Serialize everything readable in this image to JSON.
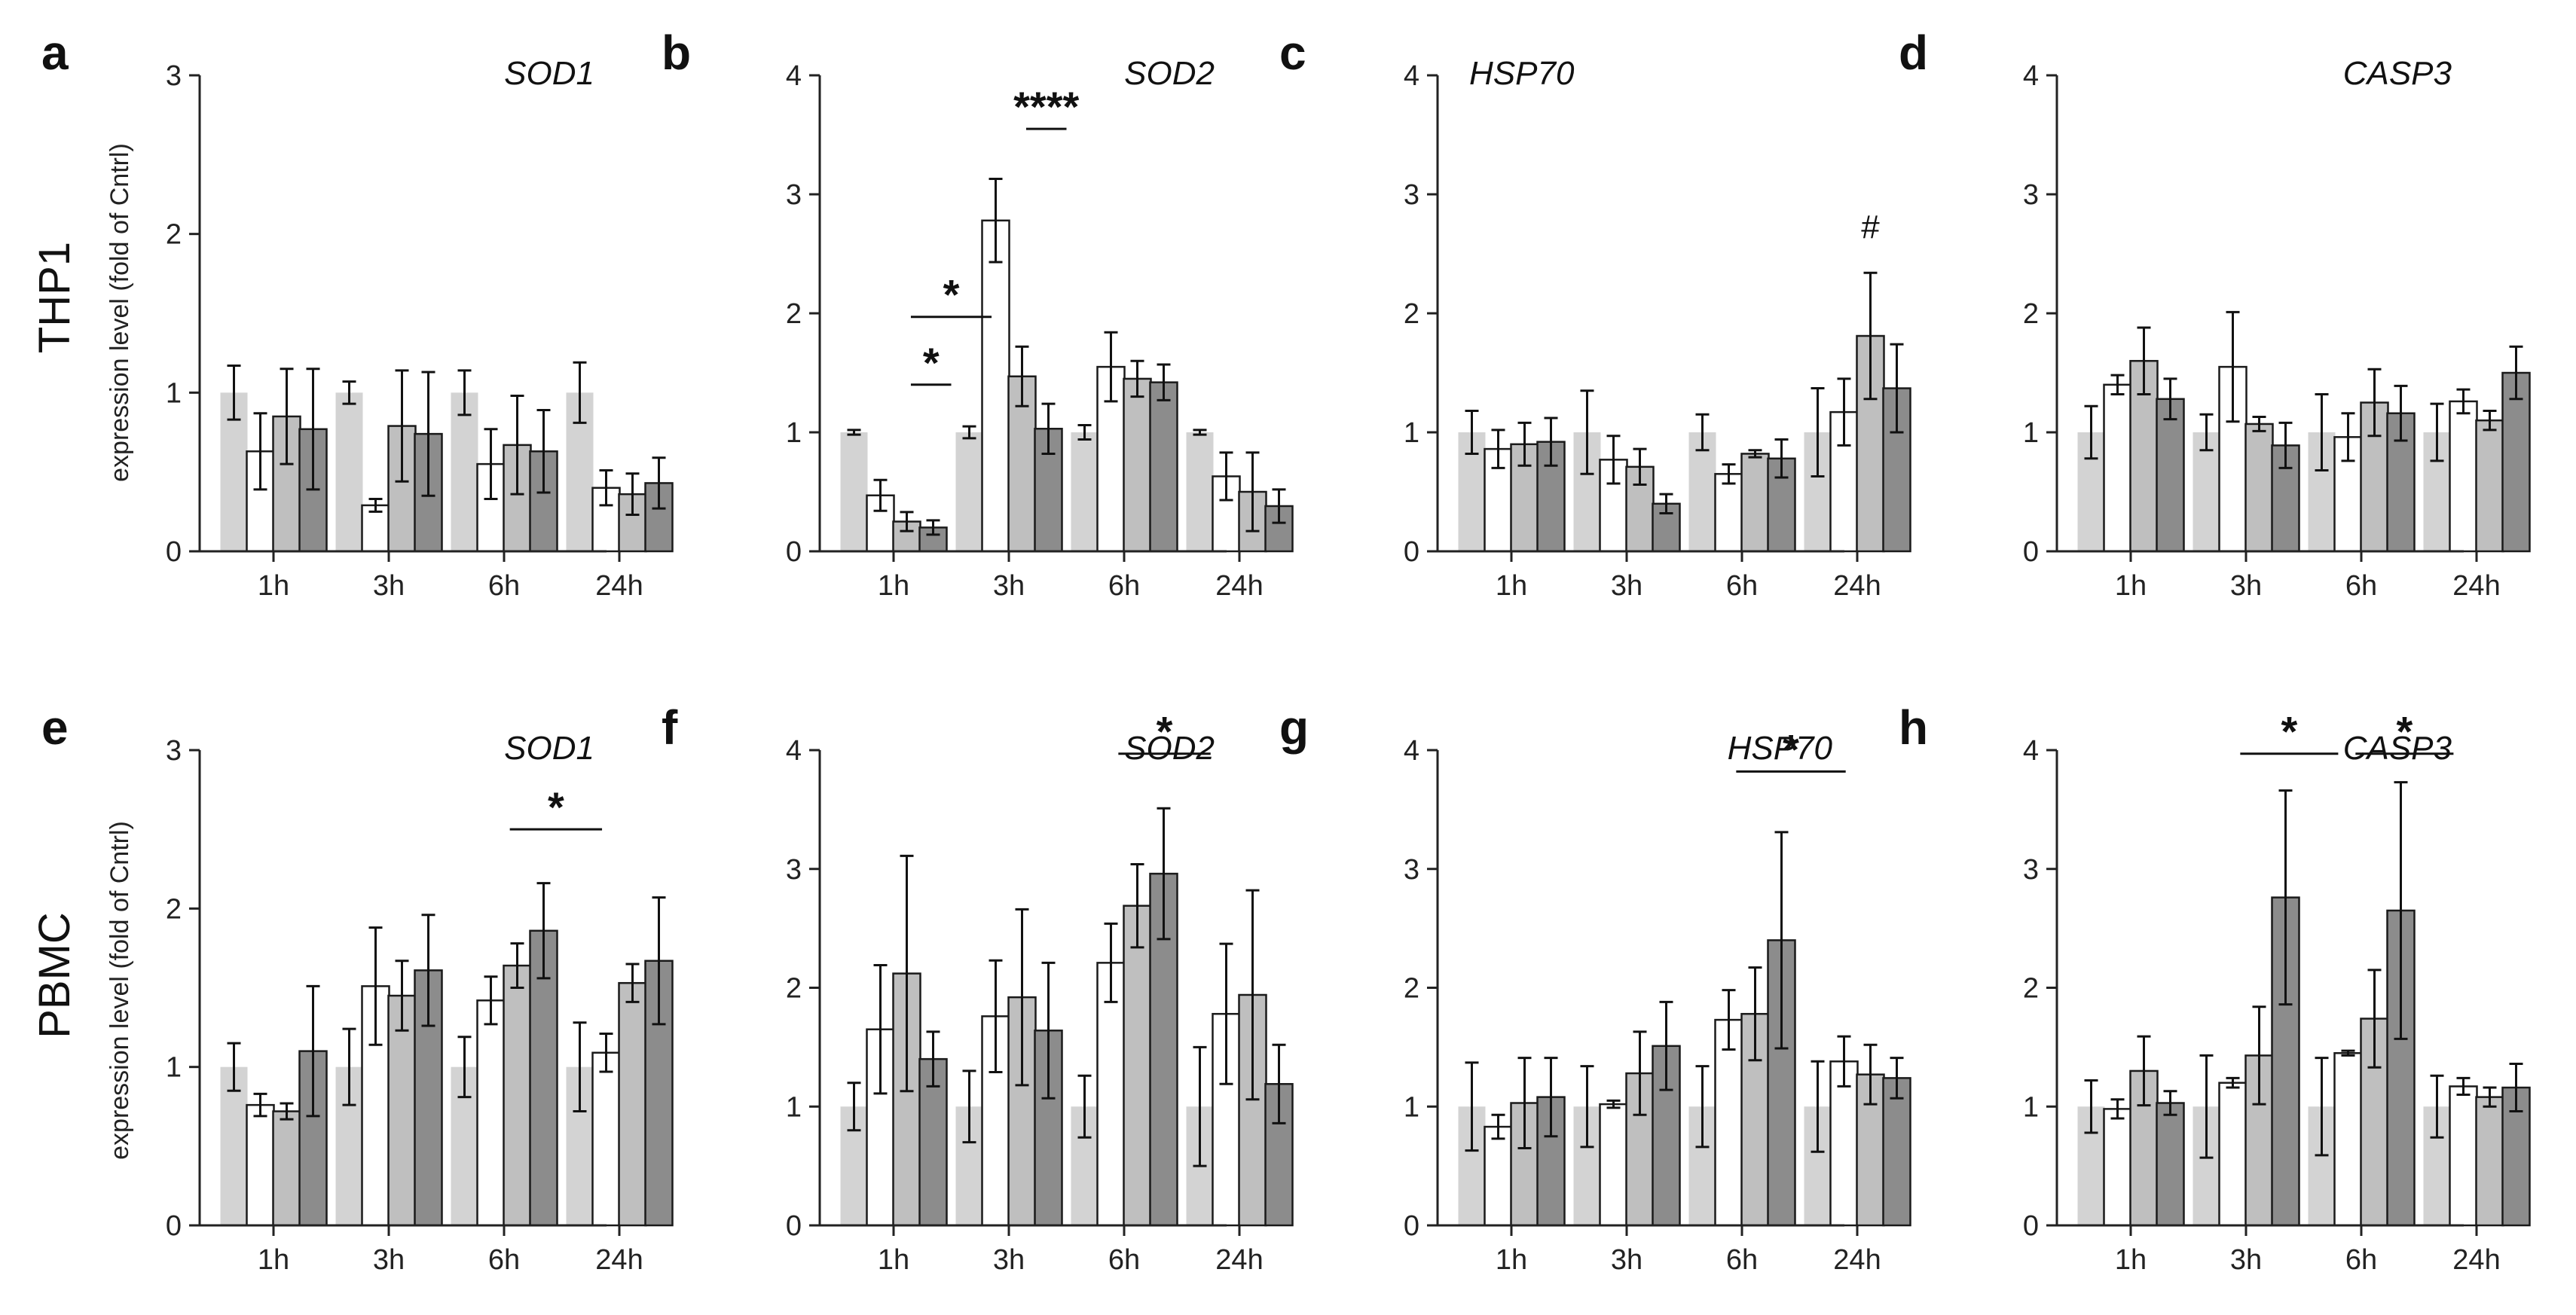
{
  "colors": {
    "control": "#d3d3d3",
    "treat1": "#ffffff",
    "treat2": "#bfbfbf",
    "treat3": "#8c8c8c",
    "axis": "#222222"
  },
  "row_labels": [
    "THP1",
    "PBMC"
  ],
  "ylabel": "expression level (fold of Cntrl)",
  "chart_data": [
    {
      "panel": "a",
      "gene": "SOD1",
      "cell": "THP1",
      "type": "bar",
      "categories": [
        "1h",
        "3h",
        "6h",
        "24h"
      ],
      "ylim": [
        0,
        3
      ],
      "yticks": [
        "0",
        "1",
        "2",
        "3"
      ],
      "gene_pos": "right",
      "series": [
        {
          "name": "control",
          "values": [
            1,
            1,
            1,
            1
          ],
          "errors": [
            0.17,
            0.07,
            0.14,
            0.19
          ]
        },
        {
          "name": "treat1",
          "values": [
            0.63,
            0.29,
            0.55,
            0.4
          ],
          "errors": [
            0.24,
            0.04,
            0.22,
            0.11
          ]
        },
        {
          "name": "treat2",
          "values": [
            0.85,
            0.79,
            0.67,
            0.36
          ],
          "errors": [
            0.3,
            0.35,
            0.31,
            0.13
          ]
        },
        {
          "name": "treat3",
          "values": [
            0.77,
            0.74,
            0.63,
            0.43
          ],
          "errors": [
            0.38,
            0.39,
            0.26,
            0.16
          ]
        }
      ],
      "annotations": []
    },
    {
      "panel": "b",
      "gene": "SOD2",
      "cell": "THP1",
      "type": "bar",
      "categories": [
        "1h",
        "3h",
        "6h",
        "24h"
      ],
      "ylim": [
        0,
        4
      ],
      "yticks": [
        "0",
        "1",
        "2",
        "3",
        "4"
      ],
      "gene_pos": "right",
      "series": [
        {
          "name": "control",
          "values": [
            1,
            1,
            1,
            1
          ],
          "errors": [
            0.02,
            0.05,
            0.06,
            0.02
          ]
        },
        {
          "name": "treat1",
          "values": [
            0.47,
            2.78,
            1.55,
            0.63
          ],
          "errors": [
            0.13,
            0.35,
            0.29,
            0.2
          ]
        },
        {
          "name": "treat2",
          "values": [
            0.25,
            1.47,
            1.45,
            0.5
          ],
          "errors": [
            0.08,
            0.25,
            0.15,
            0.33
          ]
        },
        {
          "name": "treat3",
          "values": [
            0.2,
            1.03,
            1.42,
            0.38
          ],
          "errors": [
            0.06,
            0.21,
            0.15,
            0.14
          ]
        }
      ],
      "annotations": [
        {
          "label": "*",
          "cat": 0,
          "from": 0.15,
          "to": 0.5,
          "y": 1.4
        },
        {
          "label": "*",
          "cat": 0,
          "from": 0.15,
          "to": 0.85,
          "y": 1.97
        },
        {
          "label": "****",
          "cat": 1,
          "from": 0.15,
          "to": 0.5,
          "y": 3.55
        }
      ]
    },
    {
      "panel": "c",
      "gene": "HSP70",
      "cell": "THP1",
      "type": "bar",
      "categories": [
        "1h",
        "3h",
        "6h",
        "24h"
      ],
      "ylim": [
        0,
        4
      ],
      "yticks": [
        "0",
        "1",
        "2",
        "3",
        "4"
      ],
      "gene_pos": "left",
      "series": [
        {
          "name": "control",
          "values": [
            1,
            1,
            1,
            1
          ],
          "errors": [
            0.18,
            0.35,
            0.15,
            0.37
          ]
        },
        {
          "name": "treat1",
          "values": [
            0.86,
            0.77,
            0.65,
            1.17
          ],
          "errors": [
            0.16,
            0.2,
            0.08,
            0.28
          ]
        },
        {
          "name": "treat2",
          "values": [
            0.9,
            0.71,
            0.82,
            1.81
          ],
          "errors": [
            0.18,
            0.15,
            0.03,
            0.53
          ]
        },
        {
          "name": "treat3",
          "values": [
            0.92,
            0.4,
            0.78,
            1.37
          ],
          "errors": [
            0.2,
            0.08,
            0.16,
            0.37
          ]
        }
      ],
      "annotations": [
        {
          "label": "#",
          "cat": 3,
          "bar": 2,
          "y": 2.72
        }
      ]
    },
    {
      "panel": "d",
      "gene": "CASP3",
      "cell": "THP1",
      "type": "bar",
      "categories": [
        "1h",
        "3h",
        "6h",
        "24h"
      ],
      "ylim": [
        0,
        4
      ],
      "yticks": [
        "0",
        "1",
        "2",
        "3",
        "4"
      ],
      "gene_pos": "right",
      "series": [
        {
          "name": "control",
          "values": [
            1,
            1,
            1,
            1
          ],
          "errors": [
            0.22,
            0.15,
            0.32,
            0.24
          ]
        },
        {
          "name": "treat1",
          "values": [
            1.4,
            1.55,
            0.96,
            1.26
          ],
          "errors": [
            0.08,
            0.46,
            0.2,
            0.1
          ]
        },
        {
          "name": "treat2",
          "values": [
            1.6,
            1.07,
            1.25,
            1.1
          ],
          "errors": [
            0.28,
            0.06,
            0.28,
            0.08
          ]
        },
        {
          "name": "treat3",
          "values": [
            1.28,
            0.89,
            1.16,
            1.5
          ],
          "errors": [
            0.17,
            0.19,
            0.23,
            0.22
          ]
        }
      ],
      "annotations": []
    },
    {
      "panel": "e",
      "gene": "SOD1",
      "cell": "PBMC",
      "type": "bar",
      "categories": [
        "1h",
        "3h",
        "6h",
        "24h"
      ],
      "ylim": [
        0,
        3
      ],
      "yticks": [
        "0",
        "1",
        "2",
        "3"
      ],
      "gene_pos": "right",
      "series": [
        {
          "name": "control",
          "values": [
            1,
            1,
            1,
            1
          ],
          "errors": [
            0.15,
            0.24,
            0.19,
            0.28
          ]
        },
        {
          "name": "treat1",
          "values": [
            0.76,
            1.51,
            1.42,
            1.09
          ],
          "errors": [
            0.07,
            0.37,
            0.15,
            0.12
          ]
        },
        {
          "name": "treat2",
          "values": [
            0.72,
            1.45,
            1.64,
            1.53
          ],
          "errors": [
            0.05,
            0.22,
            0.14,
            0.12
          ]
        },
        {
          "name": "treat3",
          "values": [
            1.1,
            1.61,
            1.86,
            1.67
          ],
          "errors": [
            0.41,
            0.35,
            0.3,
            0.4
          ]
        }
      ],
      "annotations": [
        {
          "label": "*",
          "cat": 2,
          "from": 0.05,
          "to": 0.85,
          "y": 2.5
        }
      ]
    },
    {
      "panel": "f",
      "gene": "SOD2",
      "cell": "PBMC",
      "type": "bar",
      "categories": [
        "1h",
        "3h",
        "6h",
        "24h"
      ],
      "ylim": [
        0,
        4
      ],
      "yticks": [
        "0",
        "1",
        "2",
        "3",
        "4"
      ],
      "gene_pos": "right",
      "series": [
        {
          "name": "control",
          "values": [
            1,
            1,
            1,
            1
          ],
          "errors": [
            0.2,
            0.3,
            0.26,
            0.5
          ]
        },
        {
          "name": "treat1",
          "values": [
            1.65,
            1.76,
            2.21,
            1.78
          ],
          "errors": [
            0.54,
            0.47,
            0.33,
            0.59
          ]
        },
        {
          "name": "treat2",
          "values": [
            2.12,
            1.92,
            2.69,
            1.94
          ],
          "errors": [
            0.99,
            0.74,
            0.35,
            0.88
          ]
        },
        {
          "name": "treat3",
          "values": [
            1.4,
            1.64,
            2.96,
            1.19
          ],
          "errors": [
            0.23,
            0.57,
            0.55,
            0.33
          ]
        }
      ],
      "annotations": [
        {
          "label": "*",
          "cat": 2,
          "from": -0.05,
          "to": 0.75,
          "y": 3.97
        }
      ]
    },
    {
      "panel": "g",
      "gene": "HSP70",
      "cell": "PBMC",
      "type": "bar",
      "categories": [
        "1h",
        "3h",
        "6h",
        "24h"
      ],
      "ylim": [
        0,
        4
      ],
      "yticks": [
        "0",
        "1",
        "2",
        "3",
        "4"
      ],
      "gene_pos": "right",
      "series": [
        {
          "name": "control",
          "values": [
            1,
            1,
            1,
            1
          ],
          "errors": [
            0.37,
            0.34,
            0.34,
            0.38
          ]
        },
        {
          "name": "treat1",
          "values": [
            0.83,
            1.02,
            1.73,
            1.38
          ],
          "errors": [
            0.1,
            0.03,
            0.25,
            0.21
          ]
        },
        {
          "name": "treat2",
          "values": [
            1.03,
            1.28,
            1.78,
            1.27
          ],
          "errors": [
            0.38,
            0.35,
            0.39,
            0.25
          ]
        },
        {
          "name": "treat3",
          "values": [
            1.08,
            1.51,
            2.4,
            1.24
          ],
          "errors": [
            0.33,
            0.37,
            0.91,
            0.17
          ]
        }
      ],
      "annotations": [
        {
          "label": "*",
          "cat": 2,
          "from": -0.05,
          "to": 0.9,
          "y": 3.82
        }
      ]
    },
    {
      "panel": "h",
      "gene": "CASP3",
      "cell": "PBMC",
      "type": "bar",
      "categories": [
        "1h",
        "3h",
        "6h",
        "24h"
      ],
      "ylim": [
        0,
        4
      ],
      "yticks": [
        "0",
        "1",
        "2",
        "3",
        "4"
      ],
      "gene_pos": "right",
      "series": [
        {
          "name": "control",
          "values": [
            1,
            1,
            1,
            1
          ],
          "errors": [
            0.22,
            0.43,
            0.41,
            0.26
          ]
        },
        {
          "name": "treat1",
          "values": [
            0.98,
            1.2,
            1.45,
            1.17
          ],
          "errors": [
            0.08,
            0.04,
            0.02,
            0.07
          ]
        },
        {
          "name": "treat2",
          "values": [
            1.3,
            1.43,
            1.74,
            1.08
          ],
          "errors": [
            0.29,
            0.41,
            0.41,
            0.08
          ]
        },
        {
          "name": "treat3",
          "values": [
            1.03,
            2.76,
            2.65,
            1.16
          ],
          "errors": [
            0.1,
            0.9,
            1.08,
            0.2
          ]
        }
      ],
      "annotations": [
        {
          "label": "*",
          "cat": 1,
          "from": -0.05,
          "to": 0.8,
          "y": 3.97
        },
        {
          "label": "*",
          "cat": 2,
          "from": -0.05,
          "to": 0.8,
          "y": 3.97
        }
      ]
    }
  ]
}
